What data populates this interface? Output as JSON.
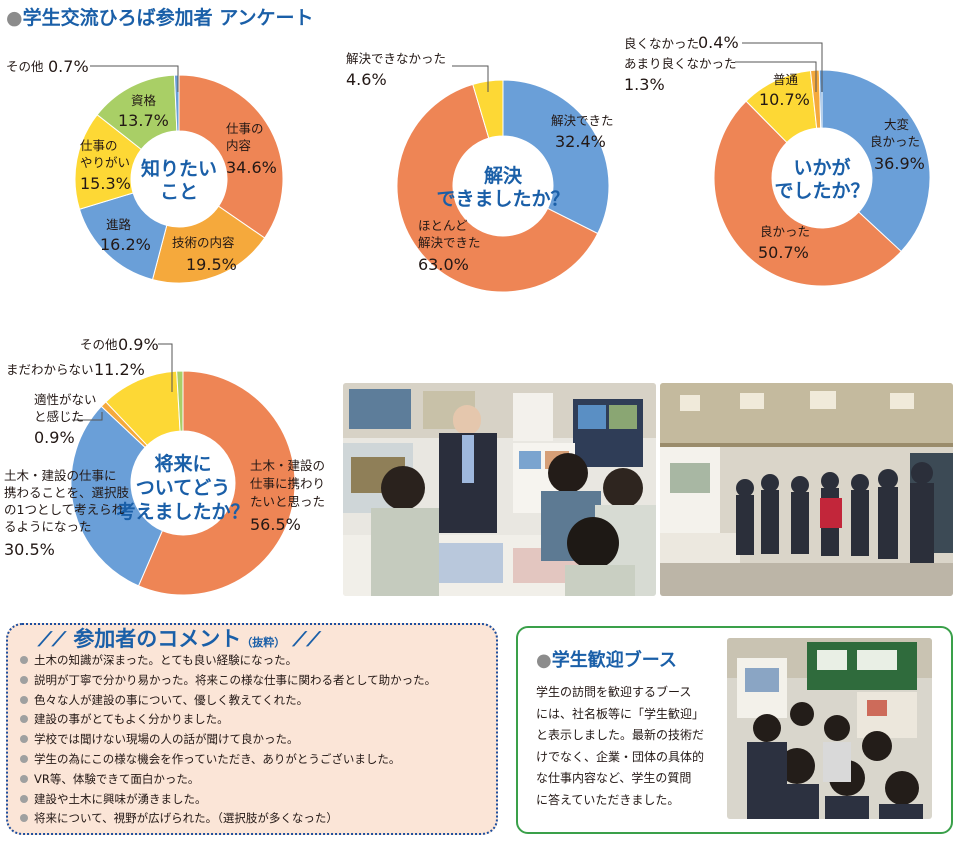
{
  "page_title": "学生交流ひろば参加者 アンケート",
  "colors": {
    "orange": "#ee8555",
    "yellow": "#fdd835",
    "blue": "#6a9fd8",
    "green": "#a9cf66",
    "gray": "#9fa0a0",
    "title": "#1a5fa8"
  },
  "chart_data": [
    {
      "type": "pie",
      "center_label": [
        "知りたい",
        "こと"
      ],
      "slices": [
        {
          "label": "仕事の内容",
          "value": 34.6,
          "color": "#ee8555"
        },
        {
          "label": "技術の内容",
          "value": 19.5,
          "color": "#f5a93c"
        },
        {
          "label": "進路",
          "value": 16.2,
          "color": "#6a9fd8"
        },
        {
          "label": "仕事のやりがい",
          "value": 15.3,
          "color": "#fdd835"
        },
        {
          "label": "資格",
          "value": 13.7,
          "color": "#a9cf66"
        },
        {
          "label": "その他",
          "value": 0.7,
          "color": "#6a9fd8"
        }
      ]
    },
    {
      "type": "pie",
      "center_label": [
        "解決",
        "できましたか？"
      ],
      "slices": [
        {
          "label": "解決できた",
          "value": 32.4,
          "color": "#6a9fd8"
        },
        {
          "label": "ほとんど解決できた",
          "value": 63.0,
          "color": "#ee8555"
        },
        {
          "label": "解決できなかった",
          "value": 4.6,
          "color": "#fdd835"
        }
      ]
    },
    {
      "type": "pie",
      "center_label": [
        "いかが",
        "でしたか？"
      ],
      "slices": [
        {
          "label": "大変良かった",
          "value": 36.9,
          "color": "#6a9fd8"
        },
        {
          "label": "良かった",
          "value": 50.7,
          "color": "#ee8555"
        },
        {
          "label": "普通",
          "value": 10.7,
          "color": "#fdd835"
        },
        {
          "label": "あまり良くなかった",
          "value": 1.3,
          "color": "#f5a93c"
        },
        {
          "label": "良くなかった",
          "value": 0.4,
          "color": "#6a9fd8"
        }
      ]
    },
    {
      "type": "pie",
      "center_label": [
        "将来に",
        "ついてどう",
        "考えましたか？"
      ],
      "slices": [
        {
          "label": "土木・建設の仕事に携わりたいと思った",
          "value": 56.5,
          "color": "#ee8555"
        },
        {
          "label": "土木・建設の仕事に携わることを、選択肢の1つとして考えられるようになった",
          "value": 30.5,
          "color": "#6a9fd8"
        },
        {
          "label": "適性がないと感じた",
          "value": 0.9,
          "color": "#f5a93c"
        },
        {
          "label": "まだわからない",
          "value": 11.2,
          "color": "#fdd835"
        },
        {
          "label": "その他",
          "value": 0.9,
          "color": "#a9cf66"
        }
      ]
    }
  ],
  "labels": {
    "c1": {
      "sonota": "その他",
      "sonota_pct": "0.7%",
      "shigoto1": "仕事の",
      "shigoto2": "内容",
      "shigoto_pct": "34.6%",
      "gijutsu": "技術の内容",
      "gijutsu_pct": "19.5%",
      "shinro": "進路",
      "shinro_pct": "16.2%",
      "yarigai1": "仕事の",
      "yarigai2": "やりがい",
      "yarigai_pct": "15.3%",
      "shikaku": "資格",
      "shikaku_pct": "13.7%"
    },
    "c2": {
      "dekinakatta": "解決できなかった",
      "dekinakatta_pct": "4.6%",
      "dekita": "解決できた",
      "dekita_pct": "32.4%",
      "hotondo1": "ほとんど",
      "hotondo2": "解決できた",
      "hotondo_pct": "63.0%"
    },
    "c3": {
      "yokunaku": "良くなかった",
      "yokunaku_pct": "0.4%",
      "amari": "あまり良くなかった",
      "amari_pct": "1.3%",
      "futsu": "普通",
      "futsu_pct": "10.7%",
      "taihen1": "大変",
      "taihen2": "良かった",
      "taihen_pct": "36.9%",
      "yokatta": "良かった",
      "yokatta_pct": "50.7%"
    },
    "c4": {
      "sonota": "その他",
      "sonota_pct": "0.9%",
      "mada": "まだわからない",
      "mada_pct": "11.2%",
      "tekisei1": "適性がない",
      "tekisei2": "と感じた",
      "tekisei_pct": "0.9%",
      "omotta1": "土木・建設の",
      "omotta2": "仕事に携わり",
      "omotta3": "たいと思った",
      "omotta_pct": "56.5%",
      "sentaku1": "土木・建設の仕事に",
      "sentaku2": "携わることを、選択肢",
      "sentaku3": "の1つとして考えられ",
      "sentaku4": "るようになった",
      "sentaku_pct": "30.5%"
    }
  },
  "comments": {
    "heading": "参加者のコメント",
    "heading_note": "（抜粋）",
    "items": [
      "土木の知識が深まった。とても良い経験になった。",
      "説明が丁寧で分かり易かった。将来この様な仕事に関わる者として助かった。",
      "色々な人が建設の事について、優しく教えてくれた。",
      "建設の事がとてもよく分かりました。",
      "学校では聞けない現場の人の話が聞けて良かった。",
      "学生の為にこの様な機会を作っていただき、ありがとうございました。",
      "VR等、体験できて面白かった。",
      "建設や土木に興味が湧きました。",
      "将来について、視野が広げられた。（選択肢が多くなった）"
    ]
  },
  "booth": {
    "title": "学生歓迎ブース",
    "lines": [
      "学生の訪問を歓迎するブース",
      "には、社名板等に「学生歓迎」",
      "と表示しました。最新の技術だ",
      "けでなく、企業・団体の具体的",
      "な仕事内容など、学生の質問",
      "に答えていただきました。"
    ]
  }
}
